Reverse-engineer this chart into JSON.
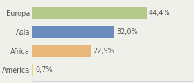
{
  "categories": [
    "Europa",
    "Asia",
    "Africa",
    "America"
  ],
  "values": [
    44.4,
    32.0,
    22.9,
    0.7
  ],
  "labels": [
    "44,4%",
    "32,0%",
    "22,9%",
    "0,7%"
  ],
  "bar_colors": [
    "#b5c98a",
    "#6b8dbd",
    "#e8b87a",
    "#e8d870"
  ],
  "background_color": "#f0f0eb",
  "xlim": [
    0,
    62
  ],
  "bar_height": 0.65,
  "label_fontsize": 7,
  "category_fontsize": 7,
  "figsize": [
    2.8,
    1.2
  ],
  "dpi": 100
}
